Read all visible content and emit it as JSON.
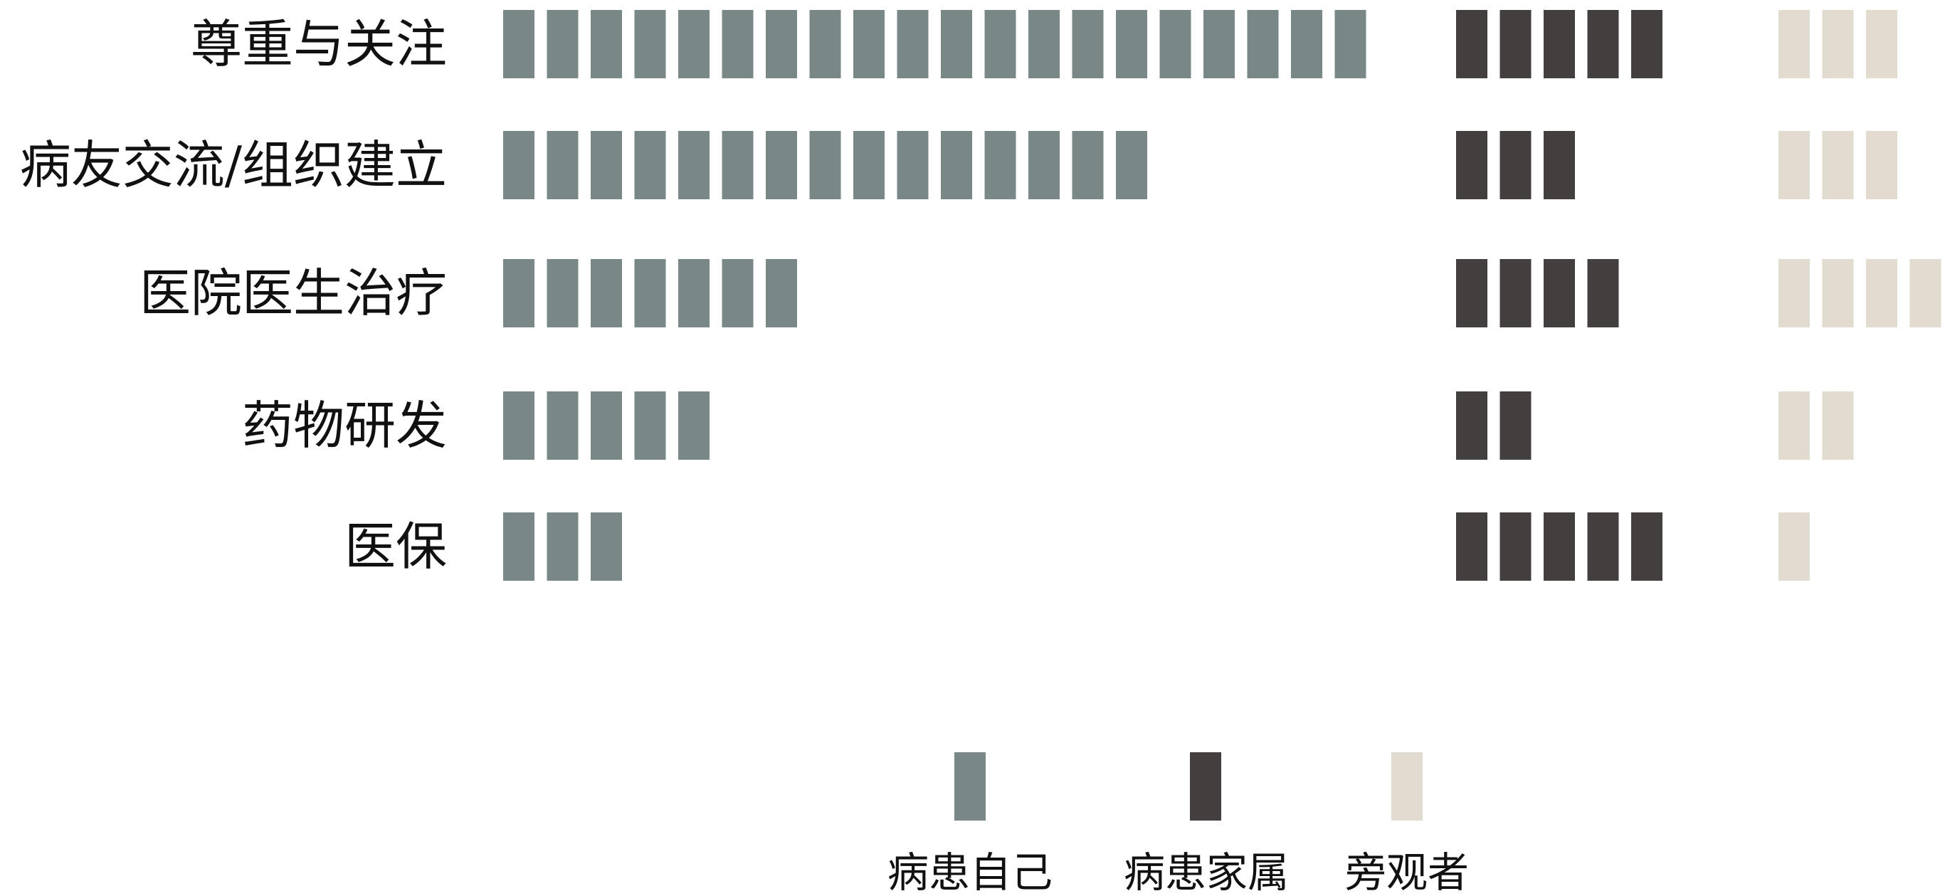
{
  "chart_data": {
    "type": "bar",
    "subtype": "pictogram (one block = one unit)",
    "categories": [
      "尊重与关注",
      "病友交流/组织建立",
      "医院医生治疗",
      "药物研发",
      "医保"
    ],
    "series": [
      {
        "name": "病患自己",
        "color": "#798887",
        "values": [
          20,
          15,
          7,
          5,
          3
        ]
      },
      {
        "name": "病患家属",
        "color": "#433f3f",
        "values": [
          5,
          3,
          4,
          2,
          5
        ]
      },
      {
        "name": "旁观者",
        "color": "#e2dbcf",
        "values": [
          3,
          3,
          4,
          2,
          1
        ]
      }
    ],
    "legend": {
      "position": "bottom-center",
      "items": [
        "病患自己",
        "病患家属",
        "旁观者"
      ]
    },
    "title": "",
    "xlabel": "",
    "ylabel": "",
    "grid": false,
    "axes_visible": false
  }
}
